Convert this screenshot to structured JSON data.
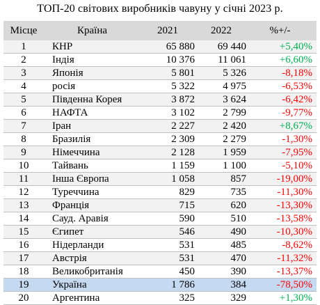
{
  "title": "ТОП-20 світових виробників чавуну у січні 2023 р.",
  "headers": {
    "rank": "Місце",
    "country": "Країна",
    "y2021": "2021",
    "y2022": "2022",
    "change": "%+/-"
  },
  "colors": {
    "positive": "#00b050",
    "negative": "#ff0000",
    "header_bg": "#d9d9d9",
    "highlight_bg": "#c5d9f1"
  },
  "rows": [
    {
      "rank": "1",
      "country": "КНР",
      "y2021": "65 880",
      "y2022": "69 440",
      "change": "+5,40%",
      "trend": "pos"
    },
    {
      "rank": "2",
      "country": "Індія",
      "y2021": "10 376",
      "y2022": "11 061",
      "change": "+6,60%",
      "trend": "pos"
    },
    {
      "rank": "3",
      "country": "Японія",
      "y2021": "5 801",
      "y2022": "5 326",
      "change": "-8,18%",
      "trend": "neg"
    },
    {
      "rank": "4",
      "country": "росія",
      "y2021": "5 322",
      "y2022": "4 975",
      "change": "-6,53%",
      "trend": "neg"
    },
    {
      "rank": "5",
      "country": "Південна Корея",
      "y2021": "3 872",
      "y2022": "3 624",
      "change": "-6,42%",
      "trend": "neg"
    },
    {
      "rank": "6",
      "country": "НАФТА",
      "y2021": "3 102",
      "y2022": "2 799",
      "change": "-9,77%",
      "trend": "neg"
    },
    {
      "rank": "7",
      "country": "Іран",
      "y2021": "2 227",
      "y2022": "2 420",
      "change": "+8,67%",
      "trend": "pos"
    },
    {
      "rank": "8",
      "country": "Бразилія",
      "y2021": "2 309",
      "y2022": "2 279",
      "change": "-1,30%",
      "trend": "neg"
    },
    {
      "rank": "9",
      "country": "Німеччина",
      "y2021": "2 128",
      "y2022": "1 959",
      "change": "-7,95%",
      "trend": "neg"
    },
    {
      "rank": "10",
      "country": "Тайвань",
      "y2021": "1 159",
      "y2022": "1 100",
      "change": "-5,10%",
      "trend": "neg"
    },
    {
      "rank": "11",
      "country": "Інша Європа",
      "y2021": "1 058",
      "y2022": "857",
      "change": "-19,00%",
      "trend": "neg"
    },
    {
      "rank": "12",
      "country": "Туреччина",
      "y2021": "829",
      "y2022": "735",
      "change": "-11,30%",
      "trend": "neg"
    },
    {
      "rank": "13",
      "country": "Франція",
      "y2021": "715",
      "y2022": "620",
      "change": "-13,30%",
      "trend": "neg"
    },
    {
      "rank": "14",
      "country": "Сауд. Аравія",
      "y2021": "590",
      "y2022": "510",
      "change": "-13,58%",
      "trend": "neg"
    },
    {
      "rank": "15",
      "country": "Єгипет",
      "y2021": "546",
      "y2022": "490",
      "change": "-10,30%",
      "trend": "neg"
    },
    {
      "rank": "16",
      "country": "Нідерланди",
      "y2021": "531",
      "y2022": "485",
      "change": "-8,62%",
      "trend": "neg"
    },
    {
      "rank": "17",
      "country": "Австрія",
      "y2021": "531",
      "y2022": "470",
      "change": "-11,32%",
      "trend": "neg"
    },
    {
      "rank": "18",
      "country": "Великобританія",
      "y2021": "450",
      "y2022": "390",
      "change": "-13,37%",
      "trend": "neg"
    },
    {
      "rank": "19",
      "country": "Україна",
      "y2021": "1 786",
      "y2022": "384",
      "change": "-78,50%",
      "trend": "neg",
      "highlight": true
    },
    {
      "rank": "20",
      "country": "Аргентина",
      "y2021": "325",
      "y2022": "329",
      "change": "+1,30%",
      "trend": "pos"
    }
  ]
}
